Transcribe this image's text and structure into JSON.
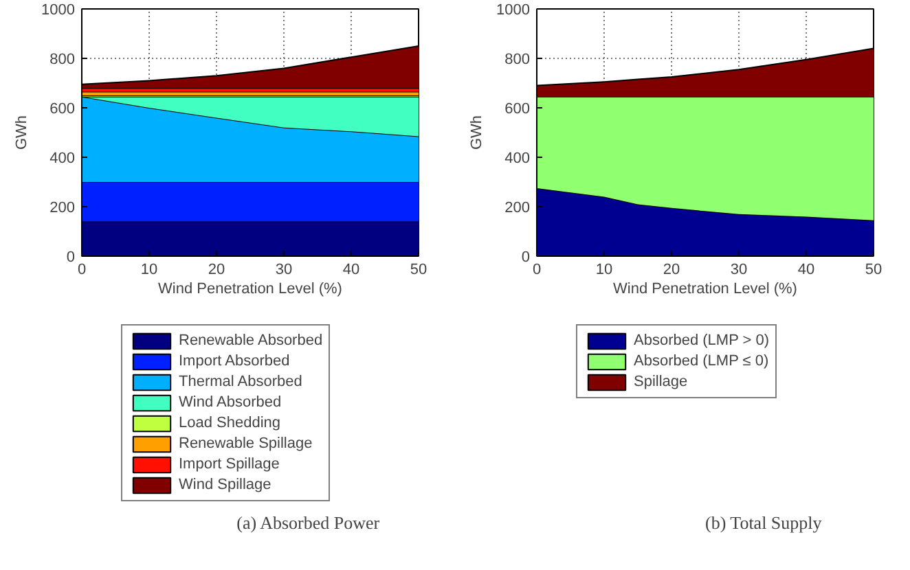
{
  "chart_data": [
    {
      "type": "area",
      "stacked": true,
      "xlabel": "Wind Penetration Level (%)",
      "ylabel": "GWh",
      "x": [
        0,
        10,
        20,
        30,
        40,
        50
      ],
      "xlim": [
        0,
        50
      ],
      "ylim": [
        0,
        1000
      ],
      "xticks": [
        0,
        10,
        20,
        30,
        40,
        50
      ],
      "yticks": [
        0,
        200,
        400,
        600,
        800,
        1000
      ],
      "grid": true,
      "legend": "bottom",
      "annotations": [
        "(a) Absorbed Power"
      ],
      "series": [
        {
          "name": "Renewable Absorbed",
          "color": "#000080",
          "values": [
            140,
            140,
            140,
            140,
            140,
            140
          ]
        },
        {
          "name": "Import Absorbed",
          "color": "#0020ff",
          "values": [
            160,
            160,
            160,
            160,
            160,
            160
          ]
        },
        {
          "name": "Thermal Absorbed",
          "color": "#00b0ff",
          "values": [
            345,
            300,
            260,
            220,
            205,
            185
          ]
        },
        {
          "name": "Wind Absorbed",
          "color": "#40ffc0",
          "values": [
            0,
            45,
            85,
            125,
            140,
            160
          ]
        },
        {
          "name": "Load Shedding",
          "color": "#c0ff40",
          "values": [
            5,
            5,
            5,
            5,
            5,
            5
          ]
        },
        {
          "name": "Renewable Spillage",
          "color": "#ffa000",
          "values": [
            15,
            15,
            15,
            15,
            15,
            15
          ]
        },
        {
          "name": "Import Spillage",
          "color": "#ff1000",
          "values": [
            15,
            15,
            15,
            15,
            15,
            15
          ]
        },
        {
          "name": "Wind Spillage",
          "color": "#800000",
          "values": [
            15,
            30,
            50,
            80,
            125,
            170
          ]
        }
      ]
    },
    {
      "type": "area",
      "stacked": true,
      "xlabel": "Wind Penetration Level (%)",
      "ylabel": "GWh",
      "x": [
        0,
        10,
        15,
        20,
        30,
        40,
        50
      ],
      "xlim": [
        0,
        50
      ],
      "ylim": [
        0,
        1000
      ],
      "xticks": [
        0,
        10,
        20,
        30,
        40,
        50
      ],
      "yticks": [
        0,
        200,
        400,
        600,
        800,
        1000
      ],
      "grid": true,
      "legend": "bottom",
      "annotations": [
        "(b) Total Supply"
      ],
      "series": [
        {
          "name": "Absorbed (LMP > 0)",
          "color": "#000090",
          "values": [
            275,
            240,
            210,
            195,
            170,
            160,
            145
          ]
        },
        {
          "name": "Absorbed (LMP ≤ 0)",
          "color": "#90ff70",
          "values": [
            370,
            405,
            435,
            450,
            475,
            485,
            500
          ]
        },
        {
          "name": "Spillage",
          "color": "#800000",
          "values": [
            45,
            60,
            70,
            80,
            110,
            150,
            195
          ]
        }
      ]
    }
  ]
}
